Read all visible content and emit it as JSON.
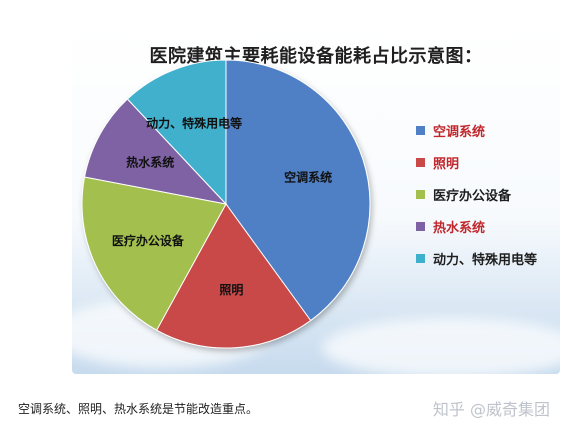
{
  "chart_data": {
    "type": "pie",
    "title": "医院建筑主要耗能设备能耗占比示意图：",
    "categories": [
      "空调系统",
      "照明",
      "医疗办公设备",
      "热水系统",
      "动力、特殊用电等"
    ],
    "values": [
      40,
      18,
      20,
      10,
      12
    ],
    "colors": [
      "#4f7fc4",
      "#c94848",
      "#a3c04f",
      "#7e62a3",
      "#3fb0cc"
    ],
    "legend": {
      "placement": "right",
      "entries": [
        {
          "label": "空调系统",
          "color": "#4f7fc4",
          "text_color": "#c0282d"
        },
        {
          "label": "照明",
          "color": "#c94848",
          "text_color": "#c0282d"
        },
        {
          "label": "医疗办公设备",
          "color": "#a3c04f",
          "text_color": "#1f1f1f"
        },
        {
          "label": "热水系统",
          "color": "#7e62a3",
          "text_color": "#c0282d"
        },
        {
          "label": "动力、特殊用电等",
          "color": "#3fb0cc",
          "text_color": "#1f1f1f"
        }
      ]
    }
  },
  "caption": "空调系统、照明、热水系统是节能改造重点。",
  "watermark": "知乎 @威奇集团"
}
